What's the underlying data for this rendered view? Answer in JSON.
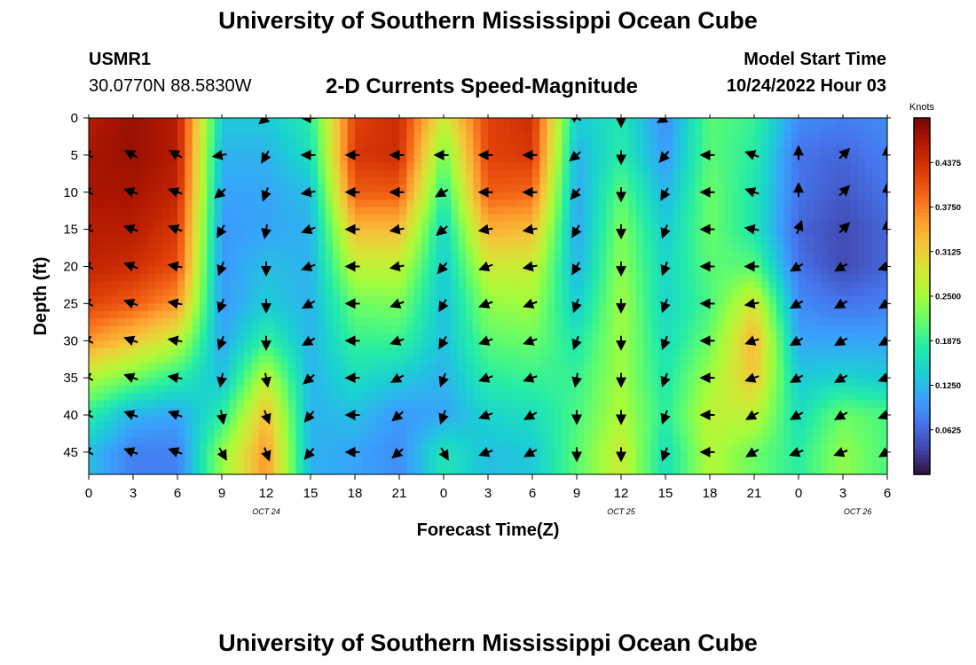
{
  "header": {
    "title": "University of Southern Mississippi Ocean Cube",
    "station_id": "USMR1",
    "station_coords": "30.0770N  88.5830W",
    "plot_title": "2-D Currents Speed-Magnitude",
    "model_start_label": "Model Start Time",
    "model_start_value": "10/24/2022 Hour 03"
  },
  "footer": {
    "title": "University of Southern Mississippi Ocean Cube"
  },
  "chart_data": {
    "type": "heatmap",
    "title": "2-D Currents Speed-Magnitude",
    "xlabel": "Forecast Time(Z)",
    "ylabel": "Depth (ft)",
    "x_range_hours": [
      0,
      54
    ],
    "x_ticks": [
      {
        "hour": 0,
        "label": "0"
      },
      {
        "hour": 3,
        "label": "3"
      },
      {
        "hour": 6,
        "label": "6"
      },
      {
        "hour": 9,
        "label": "9"
      },
      {
        "hour": 12,
        "label": "12"
      },
      {
        "hour": 15,
        "label": "15"
      },
      {
        "hour": 18,
        "label": "18"
      },
      {
        "hour": 21,
        "label": "21"
      },
      {
        "hour": 24,
        "label": "0"
      },
      {
        "hour": 27,
        "label": "3"
      },
      {
        "hour": 30,
        "label": "6"
      },
      {
        "hour": 33,
        "label": "9"
      },
      {
        "hour": 36,
        "label": "12"
      },
      {
        "hour": 39,
        "label": "15"
      },
      {
        "hour": 42,
        "label": "18"
      },
      {
        "hour": 45,
        "label": "21"
      },
      {
        "hour": 48,
        "label": "0"
      },
      {
        "hour": 51,
        "label": "3"
      },
      {
        "hour": 54,
        "label": "6"
      }
    ],
    "date_labels": [
      {
        "hour": 12,
        "label": "OCT 24"
      },
      {
        "hour": 36,
        "label": "OCT 25"
      },
      {
        "hour": 52,
        "label": "OCT 26"
      }
    ],
    "ylim": [
      0,
      48
    ],
    "y_ticks": [
      0,
      5,
      10,
      15,
      20,
      25,
      30,
      35,
      40,
      45
    ],
    "colorbar": {
      "title": "Knots",
      "range": [
        0.0,
        0.5
      ],
      "ticks": [
        "0.4375",
        "0.3750",
        "0.3125",
        "0.2500",
        "0.1875",
        "0.1250",
        "0.0625"
      ],
      "tick_values": [
        0.4375,
        0.375,
        0.3125,
        0.25,
        0.1875,
        0.125,
        0.0625
      ],
      "colors": [
        "#30123b",
        "#4145ab",
        "#4675ed",
        "#39a2fc",
        "#1bcfd4",
        "#24eca6",
        "#61fc6c",
        "#a4fc3b",
        "#d1e834",
        "#f3c63a",
        "#fe9b2d",
        "#f36315",
        "#d93806",
        "#b11901",
        "#7a0403"
      ]
    },
    "time_hours": [
      0,
      3,
      6,
      9,
      12,
      15,
      18,
      21,
      24,
      27,
      30,
      33,
      36,
      39,
      42,
      45,
      48,
      51,
      54
    ],
    "depths_ft": [
      0,
      5,
      10,
      15,
      20,
      25,
      30,
      35,
      40,
      45
    ],
    "speed_knots": [
      [
        0.46,
        0.47,
        0.47,
        0.46,
        0.45,
        0.42,
        0.36,
        0.26,
        0.18,
        0.13
      ],
      [
        0.48,
        0.48,
        0.47,
        0.46,
        0.44,
        0.4,
        0.32,
        0.22,
        0.12,
        0.08
      ],
      [
        0.46,
        0.46,
        0.45,
        0.43,
        0.41,
        0.36,
        0.27,
        0.18,
        0.11,
        0.08
      ],
      [
        0.14,
        0.12,
        0.11,
        0.1,
        0.1,
        0.1,
        0.11,
        0.13,
        0.18,
        0.24
      ],
      [
        0.14,
        0.12,
        0.11,
        0.11,
        0.13,
        0.14,
        0.19,
        0.27,
        0.33,
        0.36
      ],
      [
        0.18,
        0.16,
        0.13,
        0.12,
        0.12,
        0.12,
        0.12,
        0.12,
        0.12,
        0.12
      ],
      [
        0.42,
        0.43,
        0.4,
        0.33,
        0.27,
        0.22,
        0.19,
        0.16,
        0.13,
        0.11
      ],
      [
        0.44,
        0.44,
        0.4,
        0.33,
        0.27,
        0.23,
        0.19,
        0.14,
        0.1,
        0.09
      ],
      [
        0.28,
        0.22,
        0.18,
        0.15,
        0.14,
        0.13,
        0.13,
        0.12,
        0.11,
        0.17
      ],
      [
        0.42,
        0.42,
        0.4,
        0.34,
        0.28,
        0.24,
        0.21,
        0.18,
        0.15,
        0.13
      ],
      [
        0.44,
        0.43,
        0.39,
        0.33,
        0.28,
        0.25,
        0.22,
        0.19,
        0.16,
        0.14
      ],
      [
        0.14,
        0.12,
        0.11,
        0.11,
        0.12,
        0.14,
        0.17,
        0.19,
        0.2,
        0.21
      ],
      [
        0.17,
        0.18,
        0.21,
        0.23,
        0.24,
        0.25,
        0.25,
        0.25,
        0.26,
        0.28
      ],
      [
        0.09,
        0.1,
        0.12,
        0.14,
        0.15,
        0.15,
        0.16,
        0.17,
        0.18,
        0.16
      ],
      [
        0.21,
        0.21,
        0.22,
        0.22,
        0.21,
        0.2,
        0.22,
        0.25,
        0.27,
        0.26
      ],
      [
        0.19,
        0.18,
        0.17,
        0.17,
        0.21,
        0.29,
        0.34,
        0.32,
        0.27,
        0.22
      ],
      [
        0.09,
        0.07,
        0.07,
        0.06,
        0.07,
        0.09,
        0.11,
        0.14,
        0.16,
        0.18
      ],
      [
        0.08,
        0.06,
        0.05,
        0.04,
        0.04,
        0.07,
        0.11,
        0.15,
        0.22,
        0.24
      ],
      [
        0.09,
        0.08,
        0.07,
        0.06,
        0.06,
        0.08,
        0.11,
        0.14,
        0.2,
        0.2
      ]
    ],
    "arrow_direction_deg": [
      [
        0,
        300,
        300,
        300,
        300,
        300,
        300,
        300,
        300,
        300
      ],
      [
        0,
        300,
        290,
        290,
        290,
        290,
        290,
        290,
        290,
        290
      ],
      [
        0,
        300,
        290,
        290,
        280,
        280,
        280,
        280,
        290,
        290
      ],
      [
        0,
        260,
        230,
        210,
        200,
        200,
        200,
        190,
        170,
        150
      ],
      [
        230,
        210,
        200,
        190,
        180,
        180,
        180,
        170,
        160,
        160
      ],
      [
        270,
        270,
        260,
        250,
        250,
        240,
        240,
        230,
        220,
        220
      ],
      [
        0,
        270,
        270,
        270,
        270,
        270,
        270,
        270,
        270,
        270
      ],
      [
        0,
        270,
        270,
        260,
        260,
        250,
        250,
        240,
        230,
        230
      ],
      [
        0,
        270,
        240,
        230,
        220,
        210,
        210,
        200,
        200,
        150
      ],
      [
        0,
        270,
        270,
        260,
        250,
        250,
        250,
        250,
        250,
        250
      ],
      [
        0,
        270,
        270,
        260,
        260,
        250,
        250,
        250,
        240,
        240
      ],
      [
        300,
        230,
        220,
        210,
        210,
        200,
        200,
        190,
        180,
        180
      ],
      [
        180,
        180,
        180,
        180,
        180,
        180,
        180,
        180,
        180,
        180
      ],
      [
        240,
        220,
        210,
        200,
        200,
        200,
        200,
        200,
        200,
        200
      ],
      [
        0,
        270,
        270,
        270,
        270,
        270,
        270,
        270,
        270,
        270
      ],
      [
        0,
        290,
        290,
        280,
        270,
        260,
        250,
        250,
        240,
        240
      ],
      [
        0,
        0,
        0,
        20,
        240,
        240,
        240,
        240,
        240,
        250
      ],
      [
        0,
        45,
        45,
        45,
        240,
        240,
        240,
        240,
        240,
        250
      ],
      [
        0,
        0,
        0,
        0,
        250,
        240,
        240,
        250,
        250,
        240
      ]
    ]
  }
}
